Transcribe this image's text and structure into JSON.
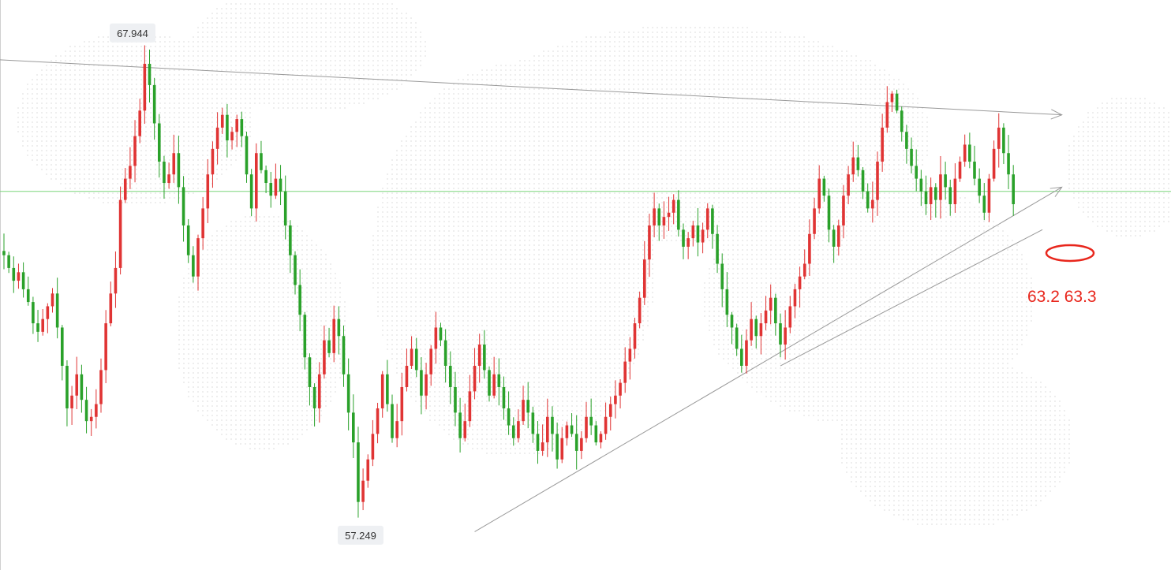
{
  "chart_data": {
    "type": "candlestick",
    "title": "",
    "xlabel": "",
    "ylabel": "",
    "ylim": [
      55.8,
      69.2
    ],
    "grid": false,
    "colors": {
      "up": "#e03434",
      "down": "#2aa12a",
      "trendline": "#999999",
      "reference_line": "#7ad67a",
      "annotation": "#e8261c",
      "label_bg": "#eef0f3"
    },
    "high_label": {
      "text": "67.944",
      "value": 67.944
    },
    "low_label": {
      "text": "57.249",
      "value": 57.249
    },
    "reference_level": 64.7,
    "annotation": {
      "text": "63.2 63.3",
      "marker": "ellipse"
    },
    "closes": [
      63.2,
      62.9,
      62.6,
      62.8,
      62.4,
      62.1,
      61.6,
      61.4,
      61.7,
      62.0,
      62.3,
      61.5,
      60.6,
      59.6,
      59.9,
      60.4,
      59.8,
      59.3,
      59.4,
      59.7,
      60.5,
      61.6,
      62.3,
      62.9,
      64.5,
      65.0,
      65.3,
      66.0,
      66.6,
      67.7,
      67.2,
      66.3,
      65.4,
      64.9,
      65.1,
      65.6,
      64.8,
      63.9,
      63.2,
      62.7,
      63.6,
      64.3,
      65.1,
      65.7,
      66.2,
      66.5,
      65.9,
      66.1,
      66.4,
      66.0,
      65.1,
      64.3,
      65.6,
      65.2,
      64.9,
      64.6,
      65.0,
      64.7,
      63.9,
      63.2,
      62.5,
      61.8,
      60.8,
      60.1,
      59.6,
      60.4,
      61.2,
      60.9,
      61.7,
      61.3,
      60.4,
      59.5,
      58.8,
      57.4,
      57.9,
      58.4,
      59.0,
      59.6,
      60.4,
      59.7,
      58.9,
      59.3,
      60.1,
      60.6,
      61.0,
      60.5,
      59.9,
      60.4,
      61.0,
      61.5,
      61.2,
      60.6,
      60.1,
      59.5,
      58.9,
      59.3,
      60.0,
      60.6,
      61.1,
      60.5,
      59.9,
      60.4,
      60.1,
      59.6,
      59.2,
      58.9,
      59.3,
      59.8,
      59.5,
      59.0,
      58.6,
      58.8,
      59.4,
      59.0,
      58.4,
      58.9,
      59.2,
      59.0,
      58.6,
      58.9,
      59.4,
      59.2,
      58.8,
      59.0,
      59.4,
      59.7,
      59.9,
      60.2,
      60.7,
      61.0,
      61.6,
      62.2,
      63.1,
      63.9,
      64.3,
      63.9,
      64.1,
      64.2,
      64.5,
      63.8,
      63.4,
      63.6,
      63.9,
      63.5,
      63.8,
      64.3,
      63.7,
      63.0,
      62.4,
      61.8,
      61.5,
      61.0,
      60.6,
      61.2,
      61.7,
      61.3,
      61.6,
      61.9,
      62.2,
      61.6,
      61.1,
      61.5,
      62.0,
      62.4,
      62.7,
      63.0,
      63.7,
      64.3,
      65.0,
      64.6,
      63.8,
      63.4,
      63.9,
      64.6,
      65.1,
      65.5,
      65.2,
      64.7,
      64.3,
      64.5,
      65.4,
      66.2,
      66.8,
      67.0,
      66.6,
      66.1,
      65.7,
      65.3,
      65.0,
      64.7,
      64.4,
      64.8,
      64.5,
      65.1,
      64.8,
      64.4,
      65.0,
      65.4,
      65.8,
      65.4,
      65.0,
      64.6,
      64.2,
      65.0,
      65.7,
      66.2,
      65.6,
      65.1,
      64.4
    ],
    "trendlines": [
      {
        "from": {
          "bar": -2,
          "value": 67.8
        },
        "to": {
          "bar": 218,
          "value": 66.5
        },
        "arrow": true
      },
      {
        "from": {
          "bar": 97,
          "value": 56.7
        },
        "to": {
          "bar": 218,
          "value": 64.8
        },
        "arrow": true
      },
      {
        "from": {
          "bar": 160,
          "value": 60.6
        },
        "to": {
          "bar": 214,
          "value": 63.8
        },
        "arrow": false
      }
    ]
  }
}
